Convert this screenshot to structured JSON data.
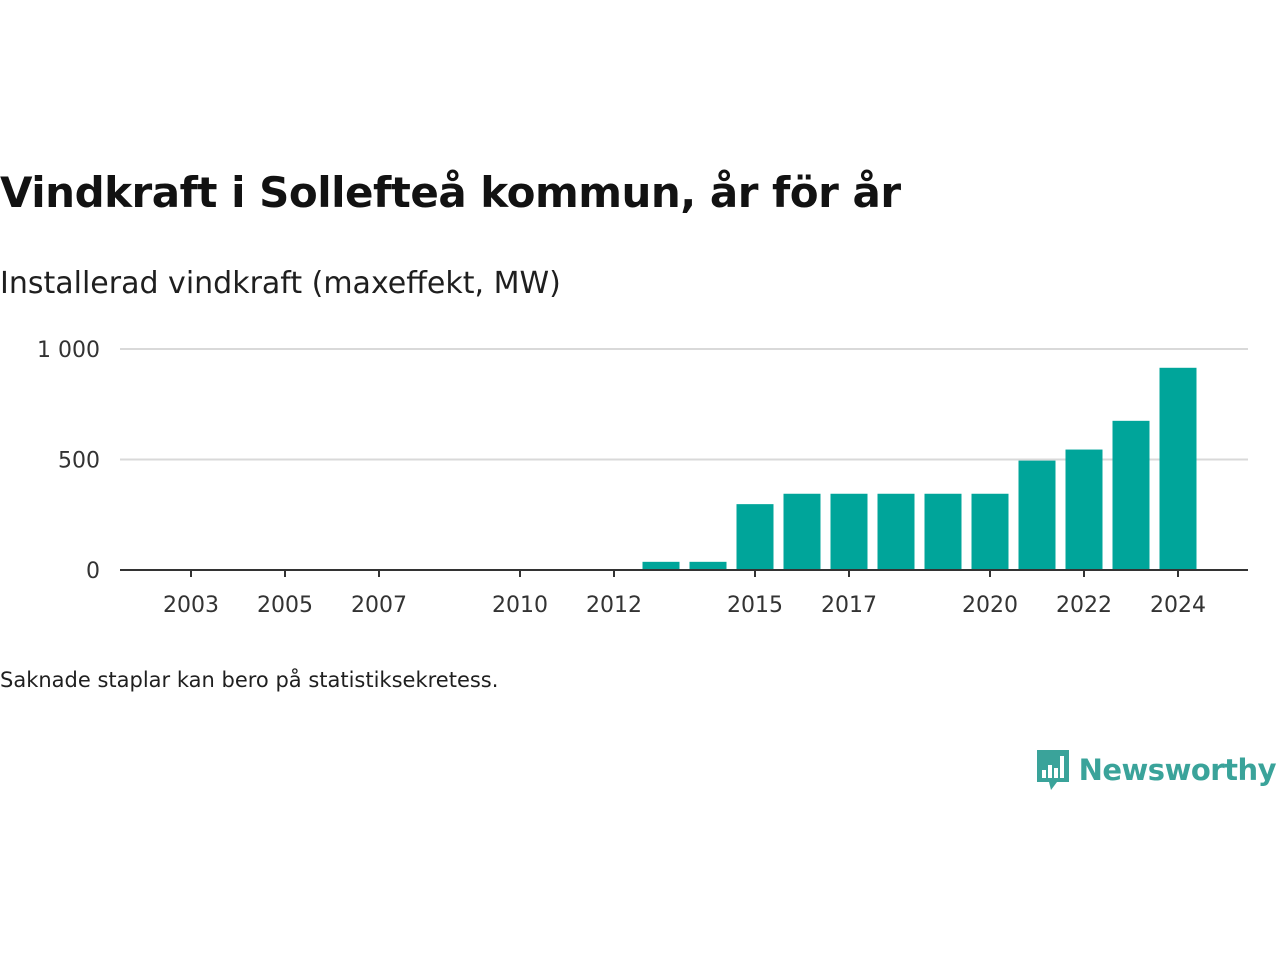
{
  "header": {
    "title": "Vindkraft i Sollefteå kommun, år för år",
    "subtitle": "Installerad vindkraft (maxeffekt, MW)"
  },
  "footnote": "Saknade staplar kan bero på statistiksekretess.",
  "brand": {
    "name": "Newsworthy",
    "logo_icon": "bar-chart-speech-bubble-icon",
    "color": "#3aa39a"
  },
  "colors": {
    "bar": "#00a59a",
    "grid": "#d9d9d9",
    "axis": "#333333"
  },
  "chart_data": {
    "type": "bar",
    "title": "",
    "xlabel": "",
    "ylabel": "",
    "ylim": [
      0,
      1000
    ],
    "y_ticks": [
      0,
      500,
      1000
    ],
    "y_tick_labels": [
      "0",
      "500",
      "1 000"
    ],
    "x_tick_labels": [
      "2003",
      "2005",
      "2007",
      "2010",
      "2012",
      "2015",
      "2017",
      "2020",
      "2022",
      "2024"
    ],
    "grid": true,
    "categories": [
      "2002",
      "2003",
      "2004",
      "2005",
      "2006",
      "2007",
      "2008",
      "2009",
      "2010",
      "2011",
      "2012",
      "2013",
      "2014",
      "2015",
      "2016",
      "2017",
      "2018",
      "2019",
      "2020",
      "2021",
      "2022",
      "2023",
      "2024"
    ],
    "values": [
      0,
      0,
      0,
      0,
      0,
      0,
      0,
      0,
      0,
      0,
      0,
      37,
      37,
      298,
      345,
      345,
      345,
      345,
      345,
      495,
      545,
      675,
      915
    ]
  }
}
